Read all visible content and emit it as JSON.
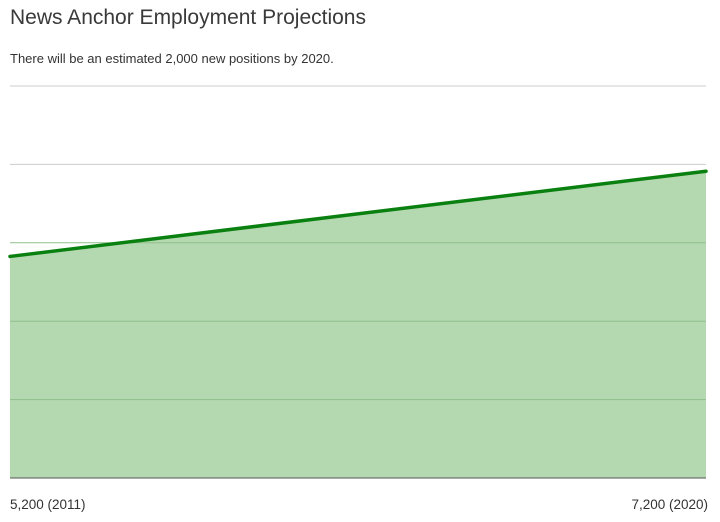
{
  "chart_data": {
    "type": "area",
    "title": "News Anchor Employment Projections",
    "subtitle": "There will be an estimated 2,000 new positions by 2020.",
    "xlabel": "",
    "ylabel": "",
    "x": [
      2011,
      2020
    ],
    "series": [
      {
        "values": [
          5200,
          7200
        ]
      }
    ],
    "x_tick_labels": [
      "5,200 (2011)",
      "7,200 (2020)"
    ],
    "ylim": [
      0,
      9200
    ],
    "y_gridlines": [
      1840,
      3680,
      5520,
      7360,
      9200
    ],
    "grid": true,
    "legend": "none",
    "colors": {
      "line": "#0a8010",
      "fill": "#b4d9b0",
      "grid": "#cccccc",
      "axis": "#555555"
    }
  }
}
